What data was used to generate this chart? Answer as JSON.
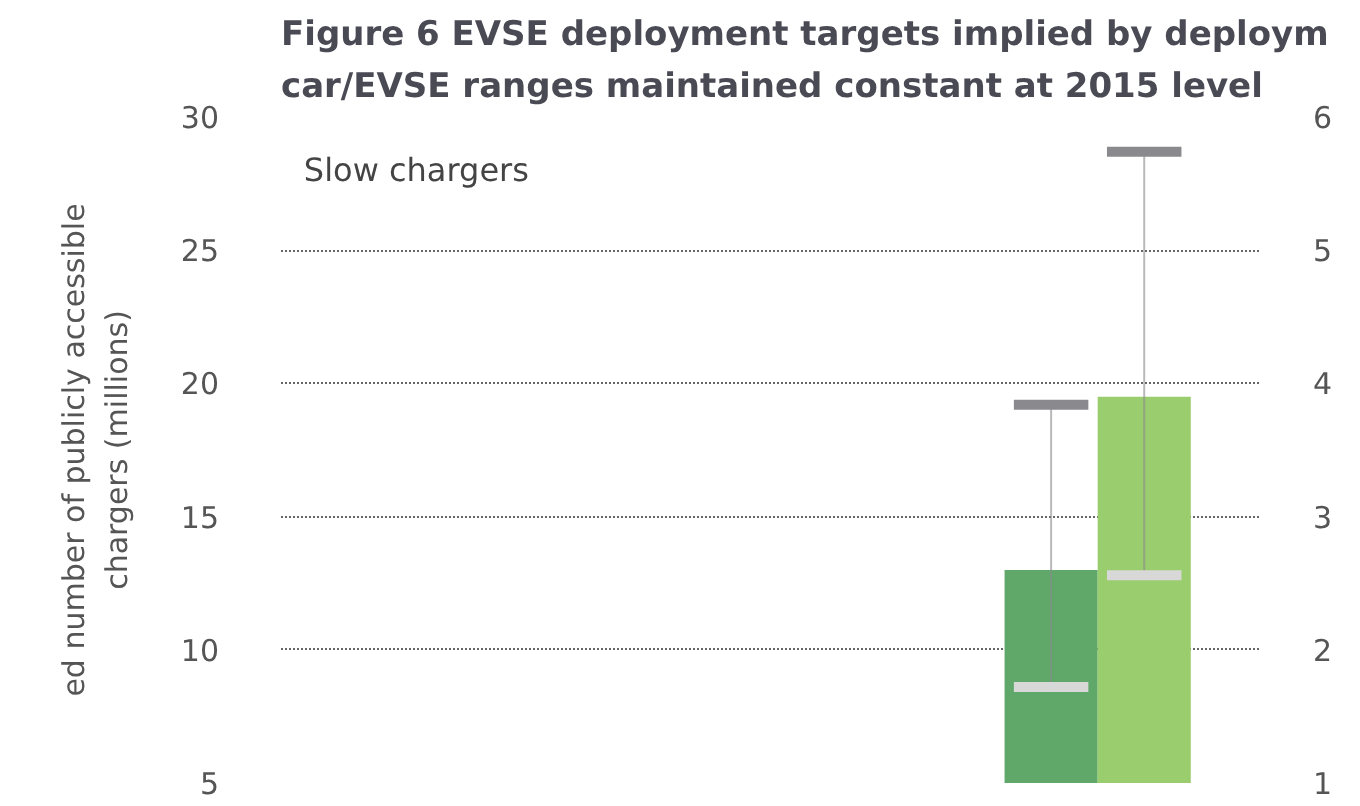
{
  "chart_data": {
    "type": "bar",
    "title": "Figure 6   EVSE deployment targets implied by deploym\ncar/EVSE ranges maintained constant at 2015 level",
    "ylabel": "ed number of publicly accessible\nchargers (millions)",
    "annotations": [
      "Slow chargers"
    ],
    "categories": [
      null,
      null,
      null
    ],
    "series": [
      {
        "color": "#5fa86a",
        "values": [
          null,
          null,
          13.0
        ],
        "errors": [
          null,
          null,
          [
            8.6,
            19.2
          ]
        ]
      },
      {
        "color": "#9acd6e",
        "values": [
          null,
          null,
          19.5
        ],
        "errors": [
          null,
          null,
          [
            12.8,
            28.7
          ]
        ]
      }
    ],
    "ylim": [
      5,
      30
    ],
    "yticks": [
      5,
      10,
      15,
      20,
      25,
      30
    ],
    "y2lim": [
      1,
      6
    ],
    "y2ticks": [
      1,
      2,
      3,
      4,
      5,
      6
    ],
    "grid": "y"
  }
}
